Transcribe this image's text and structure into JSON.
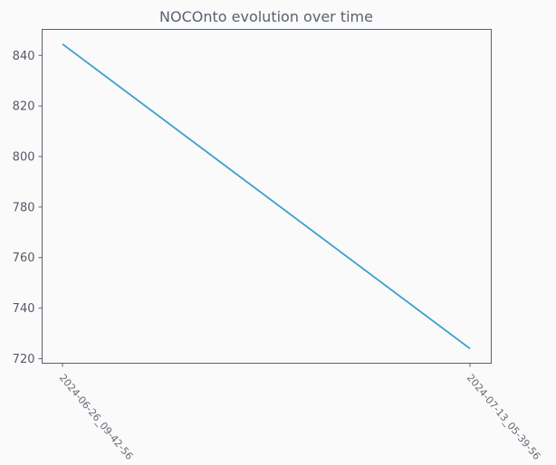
{
  "chart_data": {
    "type": "line",
    "title": "NOCOnto evolution over time",
    "xlabel": "",
    "ylabel": "",
    "categories": [
      "2024-06-26_09-42-56",
      "2024-07-13_05-39-56"
    ],
    "series": [
      {
        "values": [
          844.5,
          724
        ]
      }
    ],
    "yticks": [
      720,
      740,
      760,
      780,
      800,
      820,
      840
    ],
    "ylim": [
      718.2,
      850.3
    ],
    "grid": false,
    "line_color": "#3aa0d0"
  }
}
